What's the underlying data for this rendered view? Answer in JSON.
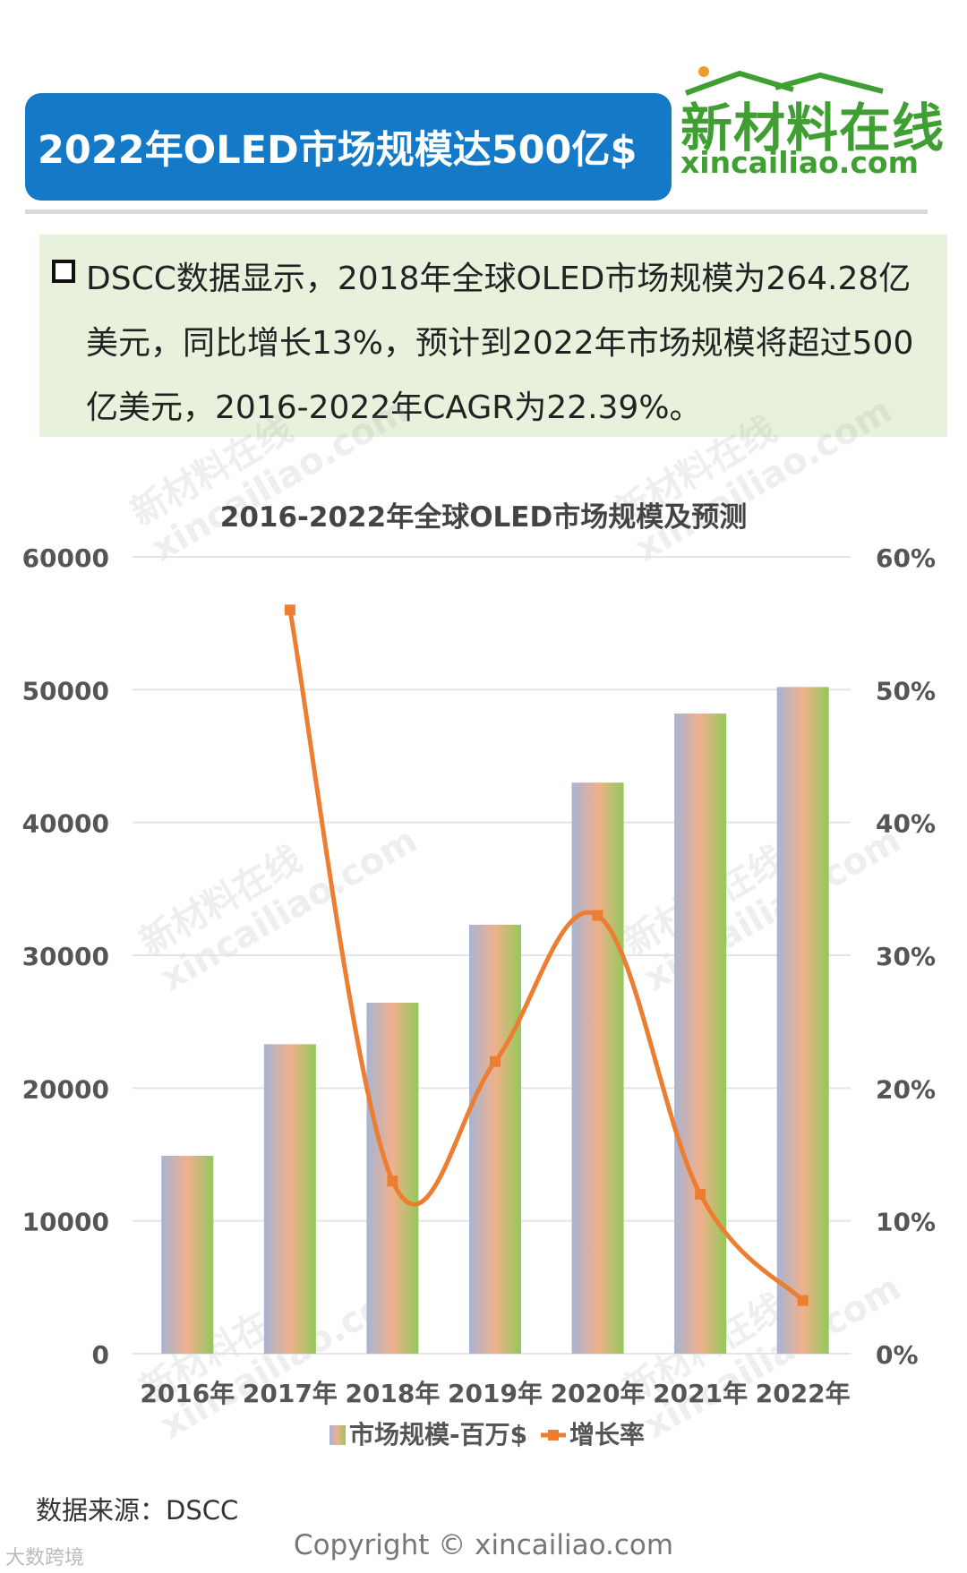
{
  "header": {
    "title": "2022年OLED市场规模达500亿$",
    "logo_cn": "新材料在线",
    "logo_url": "xincailiao.com"
  },
  "note": {
    "text": "DSCC数据显示，2018年全球OLED市场规模为264.28亿美元，同比增长13%，预计到2022年市场规模将超过500亿美元，2016-2022年CAGR为22.39%。"
  },
  "watermark": {
    "line1": "新材料在线",
    "line2": "xincailiao.com"
  },
  "chart_data": {
    "type": "bar",
    "title": "2016-2022年全球OLED市场规模及预测",
    "categories": [
      "2016年",
      "2017年",
      "2018年",
      "2019年",
      "2020年",
      "2021年",
      "2022年"
    ],
    "series": [
      {
        "name": "市场规模-百万$",
        "type": "bar",
        "axis": "left",
        "values": [
          14900,
          23300,
          26428,
          32300,
          43000,
          48200,
          50200
        ]
      },
      {
        "name": "增长率",
        "type": "line",
        "axis": "right",
        "values": [
          null,
          0.56,
          0.13,
          0.22,
          0.33,
          0.12,
          0.04
        ]
      }
    ],
    "ylim": [
      0,
      60000
    ],
    "y2lim": [
      0,
      0.6
    ],
    "yticks": [
      "0",
      "10000",
      "20000",
      "30000",
      "40000",
      "50000",
      "60000"
    ],
    "y2ticks": [
      "0%",
      "10%",
      "20%",
      "30%",
      "40%",
      "50%",
      "60%"
    ],
    "grid": true,
    "legend_position": "bottom",
    "colors": {
      "line": "#ed7d31",
      "grid": "#e4e4e4",
      "bar_gradient": [
        "#a7b4d4",
        "#f0b08c",
        "#93c95a"
      ]
    }
  },
  "footer": {
    "source": "数据来源：DSCC",
    "copyright": "Copyright © xincailiao.com",
    "corner": "大数跨境"
  }
}
